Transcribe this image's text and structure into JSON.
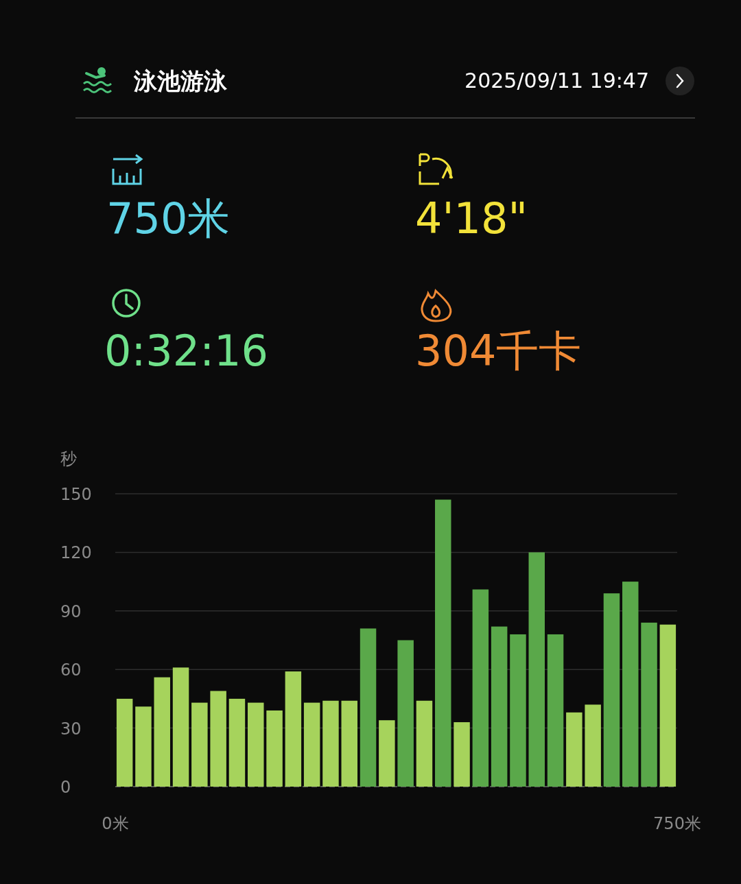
{
  "chart_data": {
    "type": "bar",
    "title": "泳池游泳",
    "subtitle": "2025/09/11 19:47",
    "annotations": [
      "750米",
      "4'18\"",
      "0:32:16",
      "304千卡"
    ],
    "ylabel": "秒",
    "x": [
      12.5,
      37.5,
      62.5,
      87.5,
      112.5,
      137.5,
      162.5,
      187.5,
      212.5,
      237.5,
      262.5,
      287.5,
      312.5,
      337.5,
      362.5,
      387.5,
      412.5,
      437.5,
      462.5,
      487.5,
      512.5,
      537.5,
      562.5,
      587.5,
      612.5,
      637.5,
      662.5,
      687.5,
      712.5,
      737.5
    ],
    "values": [
      45,
      41,
      56,
      61,
      43,
      49,
      45,
      43,
      39,
      59,
      43,
      44,
      44,
      81,
      34,
      75,
      44,
      147,
      33,
      101,
      82,
      78,
      120,
      78,
      38,
      42,
      99,
      105,
      84,
      83
    ],
    "colors": [
      "#a6d35c",
      "#a6d35c",
      "#a6d35c",
      "#a6d35c",
      "#a6d35c",
      "#a6d35c",
      "#a6d35c",
      "#a6d35c",
      "#a6d35c",
      "#a6d35c",
      "#a6d35c",
      "#a6d35c",
      "#a6d35c",
      "#5aa84a",
      "#a6d35c",
      "#5aa84a",
      "#a6d35c",
      "#5aa84a",
      "#a6d35c",
      "#5aa84a",
      "#5aa84a",
      "#5aa84a",
      "#5aa84a",
      "#5aa84a",
      "#a6d35c",
      "#a6d35c",
      "#5aa84a",
      "#5aa84a",
      "#5aa84a",
      "#a6d35c"
    ],
    "xlim": [
      0,
      750
    ],
    "xticks": [
      {
        "value": 0,
        "label": "0米"
      },
      {
        "value": 750,
        "label": "750米"
      }
    ],
    "ylim": [
      0,
      150
    ],
    "yticks": [
      0,
      30,
      60,
      90,
      120,
      150
    ],
    "grid": "y"
  }
}
